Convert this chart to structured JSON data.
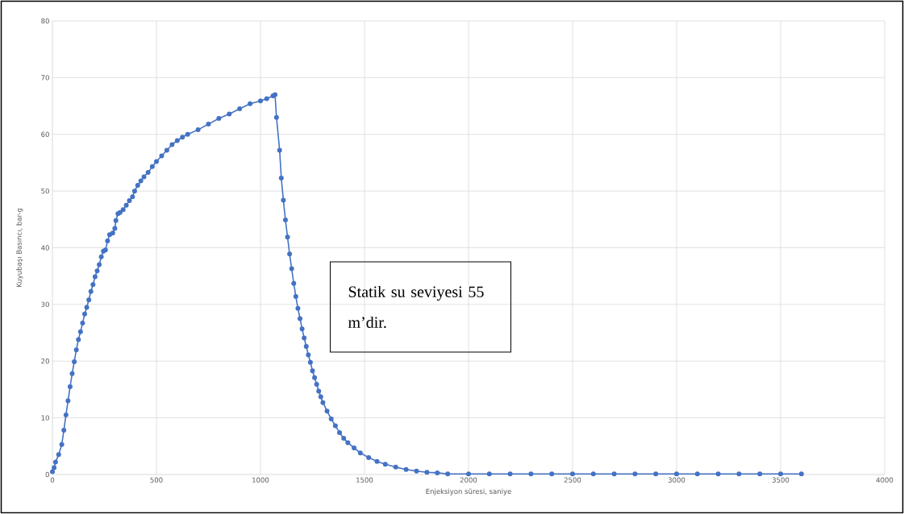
{
  "chart_data": {
    "type": "line",
    "xlabel": "Enjeksiyon süresi, saniye",
    "ylabel": "Kuyubaşı Basıncı, bar-g",
    "annotations": [
      "Statik su seviyesi 55 m’dir."
    ],
    "x": [
      0,
      8,
      15,
      30,
      45,
      55,
      65,
      75,
      85,
      95,
      105,
      115,
      125,
      135,
      145,
      155,
      165,
      175,
      185,
      195,
      205,
      215,
      225,
      235,
      245,
      255,
      265,
      275,
      290,
      300,
      305,
      315,
      325,
      340,
      355,
      370,
      385,
      395,
      410,
      425,
      440,
      460,
      480,
      500,
      525,
      550,
      575,
      600,
      625,
      650,
      700,
      750,
      800,
      850,
      900,
      950,
      1000,
      1030,
      1060,
      1070,
      1077,
      1092,
      1100,
      1110,
      1120,
      1130,
      1140,
      1150,
      1160,
      1170,
      1180,
      1190,
      1200,
      1210,
      1220,
      1230,
      1240,
      1250,
      1260,
      1270,
      1280,
      1290,
      1300,
      1320,
      1340,
      1360,
      1380,
      1400,
      1420,
      1450,
      1480,
      1520,
      1560,
      1600,
      1650,
      1700,
      1750,
      1800,
      1850,
      1900,
      2000,
      2100,
      2200,
      2300,
      2400,
      2500,
      2600,
      2700,
      2800,
      2900,
      3000,
      3100,
      3200,
      3300,
      3400,
      3500,
      3600
    ],
    "series": [
      {
        "color": "#4472c4",
        "values": [
          0.5,
          1.2,
          2.2,
          3.5,
          5.3,
          7.8,
          10.5,
          13,
          15.5,
          17.8,
          19.9,
          22,
          23.8,
          25.2,
          26.7,
          28.3,
          29.5,
          30.8,
          32.3,
          33.5,
          34.9,
          35.9,
          37,
          38.4,
          39.4,
          39.6,
          41.2,
          42.3,
          42.6,
          43.4,
          44.8,
          46,
          46.2,
          46.7,
          47.5,
          48.3,
          49,
          50,
          51,
          51.8,
          52.5,
          53.3,
          54.3,
          55.2,
          56.2,
          57.2,
          58.2,
          58.9,
          59.5,
          60,
          60.8,
          61.8,
          62.8,
          63.6,
          64.5,
          65.4,
          65.9,
          66.3,
          66.8,
          67,
          63,
          57.2,
          52.3,
          48.4,
          44.9,
          41.9,
          38.9,
          36.3,
          33.7,
          31.4,
          29.3,
          27.5,
          25.7,
          24.1,
          22.6,
          21.1,
          19.8,
          18.3,
          17.1,
          15.9,
          14.7,
          13.7,
          12.7,
          11.2,
          9.8,
          8.6,
          7.4,
          6.4,
          5.6,
          4.7,
          3.8,
          3,
          2.3,
          1.8,
          1.3,
          0.9,
          0.6,
          0.4,
          0.3,
          0.1,
          0.1,
          0.1,
          0.1,
          0.1,
          0.1,
          0.1,
          0.1,
          0.1,
          0.1,
          0.1,
          0.1,
          0.1,
          0.1,
          0.1,
          0.1,
          0.1,
          0.1
        ]
      }
    ],
    "xlim": [
      0,
      4000
    ],
    "ylim": [
      0,
      80
    ],
    "xticks": [
      0,
      500,
      1000,
      1500,
      2000,
      2500,
      3000,
      3500,
      4000
    ],
    "yticks": [
      0,
      10,
      20,
      30,
      40,
      50,
      60,
      70,
      80
    ],
    "grid": true,
    "marker": "circle"
  }
}
